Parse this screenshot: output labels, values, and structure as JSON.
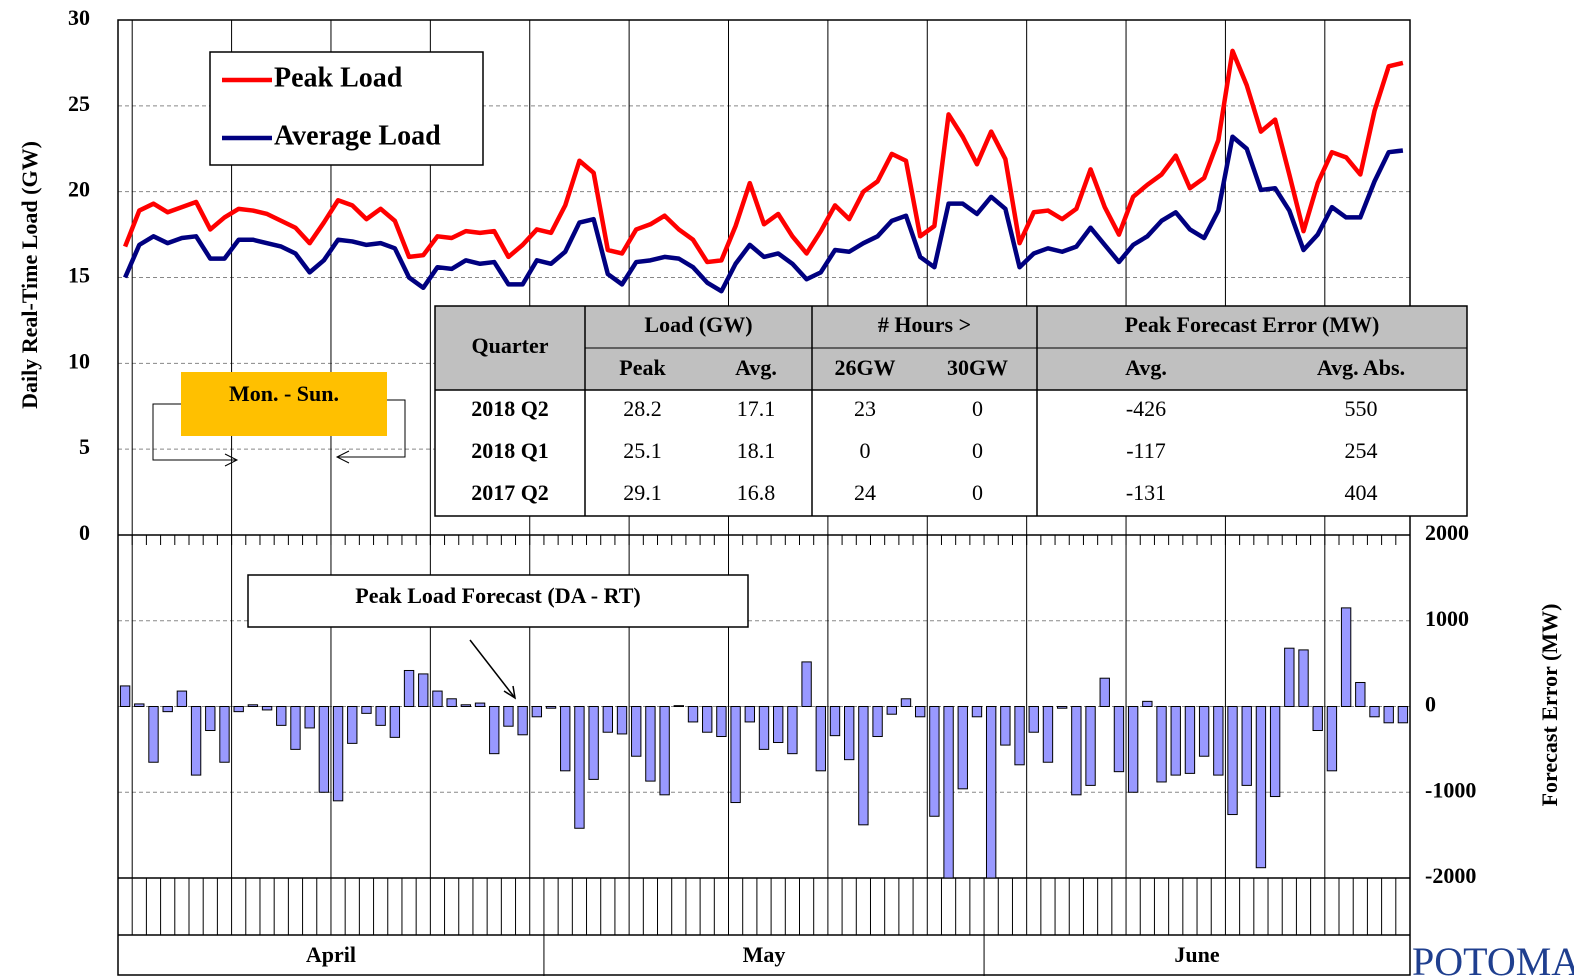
{
  "chart_data": [
    {
      "type": "line",
      "y_label": "Daily Real-Time Load (GW)",
      "months": [
        {
          "label": "April",
          "days": 30
        },
        {
          "label": "May",
          "days": 31
        },
        {
          "label": "June",
          "days": 30
        }
      ],
      "ylim": [
        0,
        30
      ],
      "yticks": [
        0,
        5,
        10,
        15,
        20,
        25,
        30
      ],
      "grid": true,
      "series": [
        {
          "name": "Peak Load",
          "color": "#ff0000",
          "values": [
            16.8,
            18.9,
            19.3,
            18.8,
            19.1,
            19.4,
            17.8,
            18.5,
            19.0,
            18.9,
            18.7,
            18.3,
            17.9,
            17.0,
            18.2,
            19.5,
            19.2,
            18.4,
            19.0,
            18.3,
            16.2,
            16.3,
            17.4,
            17.3,
            17.7,
            17.6,
            17.7,
            16.2,
            16.9,
            17.8,
            17.6,
            19.2,
            21.8,
            21.1,
            16.6,
            16.4,
            17.8,
            18.1,
            18.6,
            17.8,
            17.2,
            15.9,
            16.0,
            18.0,
            20.5,
            18.1,
            18.7,
            17.4,
            16.4,
            17.7,
            19.2,
            18.4,
            20.0,
            20.6,
            22.2,
            21.8,
            17.4,
            18.0,
            24.5,
            23.2,
            21.6,
            23.5,
            21.9,
            17.0,
            18.8,
            18.9,
            18.4,
            19.0,
            21.3,
            19.1,
            17.5,
            19.7,
            20.4,
            21.0,
            22.1,
            20.2,
            20.8,
            23.0,
            28.2,
            26.2,
            23.5,
            24.2,
            21.0,
            17.7,
            20.5,
            22.3,
            22.0,
            21.0,
            24.7,
            27.3,
            27.5
          ]
        },
        {
          "name": "Average Load",
          "color": "#000080",
          "values": [
            15.0,
            16.9,
            17.4,
            17.0,
            17.3,
            17.4,
            16.1,
            16.1,
            17.2,
            17.2,
            17.0,
            16.8,
            16.4,
            15.3,
            16.0,
            17.2,
            17.1,
            16.9,
            17.0,
            16.7,
            15.0,
            14.4,
            15.6,
            15.5,
            16.0,
            15.8,
            15.9,
            14.6,
            14.6,
            16.0,
            15.8,
            16.5,
            18.2,
            18.4,
            15.2,
            14.6,
            15.9,
            16.0,
            16.2,
            16.1,
            15.6,
            14.7,
            14.2,
            15.8,
            16.9,
            16.2,
            16.4,
            15.8,
            14.9,
            15.3,
            16.6,
            16.5,
            17.0,
            17.4,
            18.3,
            18.6,
            16.2,
            15.6,
            19.3,
            19.3,
            18.7,
            19.7,
            19.0,
            15.6,
            16.4,
            16.7,
            16.5,
            16.8,
            17.9,
            16.9,
            15.9,
            16.9,
            17.4,
            18.3,
            18.8,
            17.8,
            17.3,
            18.9,
            23.2,
            22.5,
            20.1,
            20.2,
            18.9,
            16.6,
            17.5,
            19.1,
            18.5,
            18.5,
            20.6,
            22.3,
            22.4
          ]
        }
      ],
      "annotation": "Mon. - Sun."
    },
    {
      "type": "bar",
      "y_label": "Forecast  Error  (MW)",
      "ylim": [
        -2000,
        2000
      ],
      "yticks": [
        -2000,
        -1000,
        0,
        1000,
        2000
      ],
      "grid": true,
      "color": "#9999ff",
      "annotation": "Peak Load Forecast (DA - RT)",
      "values": [
        240,
        30,
        -650,
        -60,
        180,
        -800,
        -280,
        -650,
        -60,
        20,
        -40,
        -220,
        -500,
        -250,
        -1000,
        -1100,
        -430,
        -80,
        -220,
        -360,
        420,
        380,
        180,
        90,
        20,
        40,
        -550,
        -230,
        -330,
        -120,
        -20,
        -750,
        -1420,
        -850,
        -300,
        -320,
        -580,
        -870,
        -1030,
        10,
        -180,
        -300,
        -350,
        -1120,
        -180,
        -500,
        -420,
        -550,
        520,
        -750,
        -340,
        -620,
        -1380,
        -350,
        -90,
        90,
        -120,
        -1280,
        -2000,
        -960,
        -120,
        -2000,
        -450,
        -680,
        -300,
        -650,
        -20,
        -1030,
        -920,
        330,
        -760,
        -1000,
        60,
        -880,
        -800,
        -780,
        -580,
        -800,
        -1260,
        -920,
        -1880,
        -1050,
        680,
        660,
        -280,
        -750,
        1150,
        280,
        -120,
        -190,
        -190
      ]
    }
  ],
  "table": {
    "header": [
      "Quarter",
      "Load (GW)",
      "# Hours >",
      "Peak Forecast Error (MW)"
    ],
    "subheader": [
      "Peak",
      "Avg.",
      "26GW",
      "30GW",
      "Avg.",
      "Avg. Abs."
    ],
    "rows": [
      [
        "2018 Q2",
        28.2,
        17.1,
        23,
        0,
        -426,
        550
      ],
      [
        "2018 Q1",
        25.1,
        18.1,
        0,
        0,
        -117,
        254
      ],
      [
        "2017 Q2",
        29.1,
        16.8,
        24,
        0,
        -131,
        404
      ]
    ]
  },
  "logo": "POTOMAC"
}
